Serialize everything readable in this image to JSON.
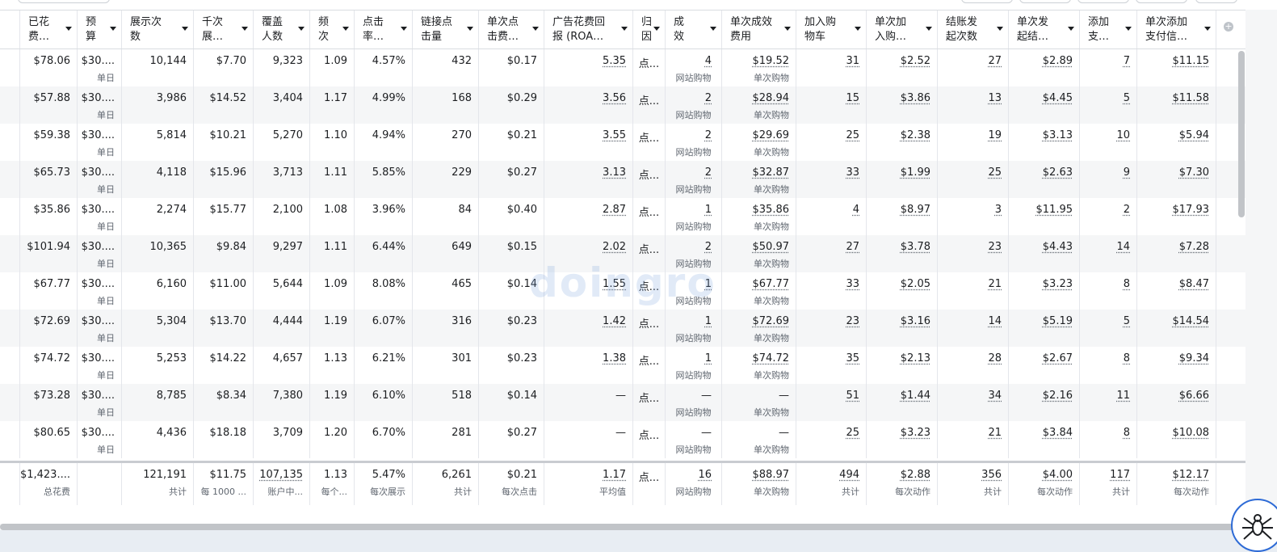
{
  "headers": [
    "已花\n费…",
    "预\n算",
    "展示次\n数",
    "千次\n展…",
    "覆盖\n人数",
    "频\n次",
    "点击\n率…",
    "链接点\n击量",
    "单次点\n击费…",
    "广告花费回\n报 (ROA…",
    "归\n因",
    "成\n效",
    "单次成效\n费用",
    "加入购\n物车",
    "单次加\n入购…",
    "结账发\n起次数",
    "单次发\n起结…",
    "添加\n支…",
    "单次添加\n支付信…"
  ],
  "add_column_icon": "plus-circle-icon",
  "rows": [
    {
      "spent": "$78.06",
      "budget": "$30....",
      "budget_sub": "单日",
      "impr": "10,144",
      "cpm": "$7.70",
      "reach": "9,323",
      "freq": "1.09",
      "ctr": "4.57%",
      "clicks": "432",
      "cpc": "$0.17",
      "roas": "5.35",
      "attr": "点...",
      "res": "4",
      "res_sub": "网站购物",
      "cpr": "$19.52",
      "cpr_sub": "单次购物",
      "atc": "31",
      "catc": "$2.52",
      "chk": "27",
      "cchk": "$2.89",
      "pay": "7",
      "cpay": "$11.15"
    },
    {
      "spent": "$57.88",
      "budget": "$30....",
      "budget_sub": "单日",
      "impr": "3,986",
      "cpm": "$14.52",
      "reach": "3,404",
      "freq": "1.17",
      "ctr": "4.99%",
      "clicks": "168",
      "cpc": "$0.29",
      "roas": "3.56",
      "attr": "点...",
      "res": "2",
      "res_sub": "网站购物",
      "cpr": "$28.94",
      "cpr_sub": "单次购物",
      "atc": "15",
      "catc": "$3.86",
      "chk": "13",
      "cchk": "$4.45",
      "pay": "5",
      "cpay": "$11.58"
    },
    {
      "spent": "$59.38",
      "budget": "$30....",
      "budget_sub": "单日",
      "impr": "5,814",
      "cpm": "$10.21",
      "reach": "5,270",
      "freq": "1.10",
      "ctr": "4.94%",
      "clicks": "270",
      "cpc": "$0.21",
      "roas": "3.55",
      "attr": "点...",
      "res": "2",
      "res_sub": "网站购物",
      "cpr": "$29.69",
      "cpr_sub": "单次购物",
      "atc": "25",
      "catc": "$2.38",
      "chk": "19",
      "cchk": "$3.13",
      "pay": "10",
      "cpay": "$5.94"
    },
    {
      "spent": "$65.73",
      "budget": "$30....",
      "budget_sub": "单日",
      "impr": "4,118",
      "cpm": "$15.96",
      "reach": "3,713",
      "freq": "1.11",
      "ctr": "5.85%",
      "clicks": "229",
      "cpc": "$0.27",
      "roas": "3.13",
      "attr": "点...",
      "res": "2",
      "res_sub": "网站购物",
      "cpr": "$32.87",
      "cpr_sub": "单次购物",
      "atc": "33",
      "catc": "$1.99",
      "chk": "25",
      "cchk": "$2.63",
      "pay": "9",
      "cpay": "$7.30"
    },
    {
      "spent": "$35.86",
      "budget": "$30....",
      "budget_sub": "单日",
      "impr": "2,274",
      "cpm": "$15.77",
      "reach": "2,100",
      "freq": "1.08",
      "ctr": "3.96%",
      "clicks": "84",
      "cpc": "$0.40",
      "roas": "2.87",
      "attr": "点...",
      "res": "1",
      "res_sub": "网站购物",
      "cpr": "$35.86",
      "cpr_sub": "单次购物",
      "atc": "4",
      "catc": "$8.97",
      "chk": "3",
      "cchk": "$11.95",
      "pay": "2",
      "cpay": "$17.93"
    },
    {
      "spent": "$101.94",
      "budget": "$30....",
      "budget_sub": "单日",
      "impr": "10,365",
      "cpm": "$9.84",
      "reach": "9,297",
      "freq": "1.11",
      "ctr": "6.44%",
      "clicks": "649",
      "cpc": "$0.15",
      "roas": "2.02",
      "attr": "点...",
      "res": "2",
      "res_sub": "网站购物",
      "cpr": "$50.97",
      "cpr_sub": "单次购物",
      "atc": "27",
      "catc": "$3.78",
      "chk": "23",
      "cchk": "$4.43",
      "pay": "14",
      "cpay": "$7.28"
    },
    {
      "spent": "$67.77",
      "budget": "$30....",
      "budget_sub": "单日",
      "impr": "6,160",
      "cpm": "$11.00",
      "reach": "5,644",
      "freq": "1.09",
      "ctr": "8.08%",
      "clicks": "465",
      "cpc": "$0.14",
      "roas": "1.55",
      "attr": "点...",
      "res": "1",
      "res_sub": "网站购物",
      "cpr": "$67.77",
      "cpr_sub": "单次购物",
      "atc": "33",
      "catc": "$2.05",
      "chk": "21",
      "cchk": "$3.23",
      "pay": "8",
      "cpay": "$8.47"
    },
    {
      "spent": "$72.69",
      "budget": "$30....",
      "budget_sub": "单日",
      "impr": "5,304",
      "cpm": "$13.70",
      "reach": "4,444",
      "freq": "1.19",
      "ctr": "6.07%",
      "clicks": "316",
      "cpc": "$0.23",
      "roas": "1.42",
      "attr": "点...",
      "res": "1",
      "res_sub": "网站购物",
      "cpr": "$72.69",
      "cpr_sub": "单次购物",
      "atc": "23",
      "catc": "$3.16",
      "chk": "14",
      "cchk": "$5.19",
      "pay": "5",
      "cpay": "$14.54"
    },
    {
      "spent": "$74.72",
      "budget": "$30....",
      "budget_sub": "单日",
      "impr": "5,253",
      "cpm": "$14.22",
      "reach": "4,657",
      "freq": "1.13",
      "ctr": "6.21%",
      "clicks": "301",
      "cpc": "$0.23",
      "roas": "1.38",
      "attr": "点...",
      "res": "1",
      "res_sub": "网站购物",
      "cpr": "$74.72",
      "cpr_sub": "单次购物",
      "atc": "35",
      "catc": "$2.13",
      "chk": "28",
      "cchk": "$2.67",
      "pay": "8",
      "cpay": "$9.34"
    },
    {
      "spent": "$73.28",
      "budget": "$30....",
      "budget_sub": "单日",
      "impr": "8,785",
      "cpm": "$8.34",
      "reach": "7,380",
      "freq": "1.19",
      "ctr": "6.10%",
      "clicks": "518",
      "cpc": "$0.14",
      "roas": "—",
      "attr": "点...",
      "res": "—",
      "res_sub": "网站购物",
      "cpr": "—",
      "cpr_sub": "单次购物",
      "atc": "51",
      "catc": "$1.44",
      "chk": "34",
      "cchk": "$2.16",
      "pay": "11",
      "cpay": "$6.66"
    },
    {
      "spent": "$80.65",
      "budget": "$30....",
      "budget_sub": "单日",
      "impr": "4,436",
      "cpm": "$18.18",
      "reach": "3,709",
      "freq": "1.20",
      "ctr": "6.70%",
      "clicks": "281",
      "cpc": "$0.27",
      "roas": "—",
      "attr": "点...",
      "res": "—",
      "res_sub": "网站购物",
      "cpr": "—",
      "cpr_sub": "单次购物",
      "atc": "25",
      "catc": "$3.23",
      "chk": "21",
      "cchk": "$3.84",
      "pay": "8",
      "cpay": "$10.08"
    }
  ],
  "totals": {
    "spent": "$1,423....",
    "spent_sub": "总花费",
    "budget": "",
    "budget_sub": "",
    "impr": "121,191",
    "impr_sub": "共计",
    "cpm": "$11.75",
    "cpm_sub": "每 1000 ...",
    "reach": "107,135",
    "reach_sub": "账户中...",
    "freq": "1.13",
    "freq_sub": "每个...",
    "ctr": "5.47%",
    "ctr_sub": "每次展示",
    "clicks": "6,261",
    "clicks_sub": "共计",
    "cpc": "$0.21",
    "cpc_sub": "每次点击",
    "roas": "1.17",
    "roas_sub": "平均值",
    "attr": "点...",
    "attr_sub": "",
    "res": "16",
    "res_sub": "网站购物",
    "cpr": "$88.97",
    "cpr_sub": "单次购物",
    "atc": "494",
    "atc_sub": "共计",
    "catc": "$2.88",
    "catc_sub": "每次动作",
    "chk": "356",
    "chk_sub": "共计",
    "cchk": "$4.00",
    "cchk_sub": "每次动作",
    "pay": "117",
    "pay_sub": "共计",
    "cpay": "$12.17",
    "cpay_sub": "每次动作"
  },
  "watermark": "doingro",
  "avatar_icon": "spider-logo-icon"
}
